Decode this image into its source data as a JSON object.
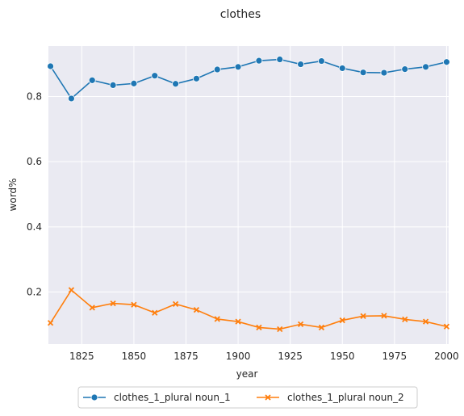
{
  "chart_data": {
    "type": "line",
    "title": "clothes",
    "xlabel": "year",
    "ylabel": "word%",
    "xlim": [
      1809,
      2001
    ],
    "ylim": [
      0.04,
      0.955
    ],
    "xticks": [
      1825,
      1850,
      1875,
      1900,
      1925,
      1950,
      1975,
      2000
    ],
    "xtick_labels": [
      "1825",
      "1850",
      "1875",
      "1900",
      "1925",
      "1950",
      "1975",
      "2000"
    ],
    "yticks": [
      0.2,
      0.4,
      0.6,
      0.8
    ],
    "ytick_labels": [
      "0.2",
      "0.4",
      "0.6",
      "0.8"
    ],
    "grid": true,
    "legend_position": "bottom-center",
    "x": [
      1810,
      1820,
      1830,
      1840,
      1850,
      1860,
      1870,
      1880,
      1890,
      1900,
      1910,
      1920,
      1930,
      1940,
      1950,
      1960,
      1970,
      1980,
      1990,
      2000
    ],
    "series": [
      {
        "name": "clothes_1_plural noun_1",
        "color": "#1f77b4",
        "marker": "circle",
        "values": [
          0.893,
          0.794,
          0.85,
          0.835,
          0.84,
          0.864,
          0.839,
          0.855,
          0.883,
          0.891,
          0.91,
          0.914,
          0.899,
          0.909,
          0.887,
          0.874,
          0.873,
          0.884,
          0.891,
          0.906
        ]
      },
      {
        "name": "clothes_1_plural noun_2",
        "color": "#ff7f0e",
        "marker": "x",
        "values": [
          0.105,
          0.206,
          0.152,
          0.165,
          0.161,
          0.136,
          0.163,
          0.145,
          0.117,
          0.109,
          0.091,
          0.086,
          0.101,
          0.091,
          0.113,
          0.126,
          0.127,
          0.116,
          0.109,
          0.094
        ]
      }
    ]
  }
}
